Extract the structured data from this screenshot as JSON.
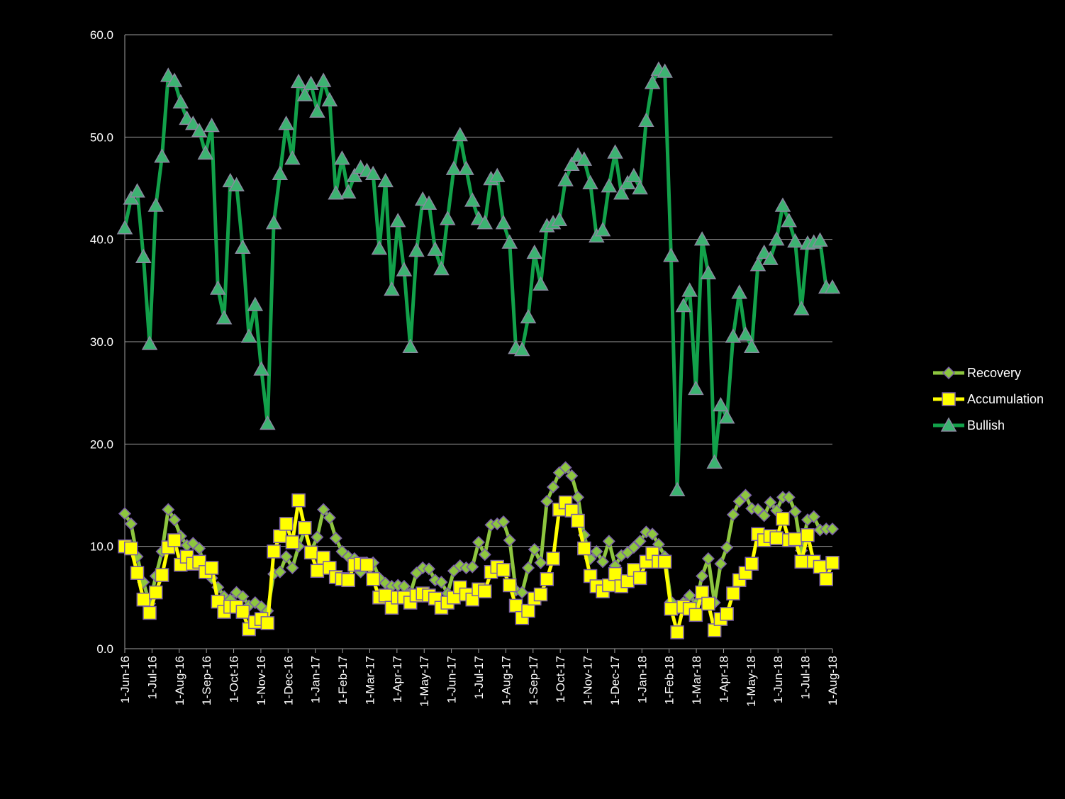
{
  "chart_data": {
    "type": "line",
    "title": "",
    "xlabel": "",
    "ylabel": "",
    "ylim": [
      0,
      60
    ],
    "yticks": [
      "0.0",
      "10.0",
      "20.0",
      "30.0",
      "40.0",
      "50.0",
      "60.0"
    ],
    "xticks": [
      "1-Jun-16",
      "1-Jul-16",
      "1-Aug-16",
      "1-Sep-16",
      "1-Oct-16",
      "1-Nov-16",
      "1-Dec-16",
      "1-Jan-17",
      "1-Feb-17",
      "1-Mar-17",
      "1-Apr-17",
      "1-May-17",
      "1-Jun-17",
      "1-Jul-17",
      "1-Aug-17",
      "1-Sep-17",
      "1-Oct-17",
      "1-Nov-17",
      "1-Dec-17",
      "1-Jan-18",
      "1-Feb-18",
      "1-Mar-18",
      "1-Apr-18",
      "1-May-18",
      "1-Jun-18",
      "1-Jul-18",
      "1-Aug-18"
    ],
    "x_start_month_index": 0,
    "x_end_month_index": 26,
    "grid": true,
    "legend_position": "right",
    "series": [
      {
        "name": "Bullish",
        "color": "#12a14a",
        "marker": "triangle",
        "values": [
          41.1,
          44.0,
          44.7,
          38.3,
          29.8,
          43.3,
          48.1,
          56.0,
          55.5,
          53.4,
          51.8,
          51.3,
          50.6,
          48.4,
          51.1,
          35.2,
          32.3,
          45.7,
          45.3,
          39.2,
          30.5,
          33.6,
          27.3,
          22.0,
          41.6,
          46.4,
          51.3,
          47.9,
          55.4,
          54.1,
          55.2,
          52.5,
          55.5,
          53.6,
          44.5,
          47.9,
          44.6,
          46.2,
          47.0,
          46.7,
          46.4,
          39.1,
          45.7,
          35.1,
          41.8,
          37.0,
          29.5,
          38.9,
          43.9,
          43.5,
          39.0,
          37.1,
          42.0,
          46.9,
          50.2,
          46.9,
          43.8,
          42.0,
          41.6,
          45.9,
          46.2,
          41.6,
          39.7,
          29.4,
          29.2,
          32.4,
          38.7,
          35.6,
          41.3,
          41.6,
          41.9,
          45.8,
          47.3,
          48.2,
          47.8,
          45.5,
          40.3,
          40.9,
          45.2,
          48.5,
          44.5,
          45.5,
          46.2,
          45.0,
          51.6,
          55.3,
          56.6,
          56.4,
          38.4,
          15.5,
          33.5,
          35.0,
          25.4,
          40.0,
          36.7,
          18.2,
          23.8,
          22.6,
          30.5,
          34.8,
          30.7,
          29.5,
          37.5,
          38.7,
          38.1,
          40.0,
          43.3,
          41.8,
          39.8,
          33.2,
          39.6,
          39.7,
          39.9,
          35.3,
          35.3
        ]
      },
      {
        "name": "Recovery",
        "color": "#8dc63f",
        "marker": "diamond",
        "values": [
          13.2,
          12.2,
          9.0,
          6.5,
          4.4,
          7.1,
          9.5,
          13.6,
          12.6,
          11.0,
          10.1,
          10.3,
          9.8,
          7.5,
          6.9,
          6.0,
          5.1,
          4.8,
          5.5,
          5.1,
          4.2,
          4.5,
          4.1,
          3.7,
          7.3,
          7.5,
          9.0,
          7.9,
          10.0,
          11.6,
          9.5,
          10.9,
          13.6,
          12.8,
          10.8,
          9.5,
          9.0,
          8.8,
          7.5,
          8.4,
          8.4,
          6.9,
          6.4,
          6.1,
          6.2,
          6.1,
          5.4,
          7.4,
          7.9,
          7.8,
          6.7,
          6.5,
          5.4,
          7.6,
          8.1,
          7.9,
          8.0,
          10.4,
          9.2,
          12.1,
          12.2,
          12.4,
          10.6,
          5.7,
          5.5,
          7.9,
          9.7,
          8.4,
          14.4,
          15.8,
          17.2,
          17.7,
          16.9,
          14.8,
          11.1,
          8.8,
          9.5,
          8.5,
          10.5,
          8.1,
          9.1,
          9.4,
          9.9,
          10.5,
          11.4,
          11.2,
          10.2,
          9.0,
          4.6,
          3.9,
          4.5,
          5.2,
          4.4,
          7.1,
          8.8,
          4.5,
          8.3,
          9.9,
          13.1,
          14.4,
          15.0,
          13.7,
          13.6,
          13.0,
          14.3,
          13.5,
          14.8,
          14.8,
          13.4,
          9.6,
          12.6,
          12.9,
          11.6,
          11.7,
          11.7
        ]
      },
      {
        "name": "Accumulation",
        "color": "#ffff00",
        "marker": "square",
        "values": [
          10.0,
          9.8,
          7.4,
          4.8,
          3.5,
          5.5,
          7.2,
          9.9,
          10.6,
          8.2,
          9.0,
          8.3,
          8.5,
          7.5,
          7.9,
          4.6,
          3.6,
          4.1,
          4.1,
          3.6,
          1.9,
          2.6,
          2.9,
          2.5,
          9.5,
          11.0,
          12.2,
          10.4,
          14.5,
          11.8,
          9.4,
          7.6,
          8.9,
          7.9,
          7.0,
          6.8,
          6.7,
          8.2,
          8.3,
          8.2,
          6.8,
          5.0,
          5.2,
          4.0,
          5.0,
          5.0,
          4.5,
          5.2,
          5.4,
          5.2,
          4.9,
          4.0,
          4.5,
          5.0,
          6.0,
          5.3,
          4.8,
          5.8,
          5.6,
          7.5,
          8.0,
          7.7,
          6.2,
          4.2,
          3.0,
          3.7,
          4.9,
          5.3,
          6.8,
          8.8,
          13.6,
          14.3,
          13.5,
          12.5,
          9.8,
          7.1,
          6.1,
          5.6,
          6.2,
          7.3,
          6.1,
          6.6,
          7.7,
          6.9,
          8.5,
          9.3,
          8.5,
          8.5,
          3.9,
          1.6,
          4.1,
          3.9,
          3.3,
          5.5,
          4.4,
          1.8,
          2.9,
          3.4,
          5.4,
          6.7,
          7.4,
          8.3,
          11.2,
          10.6,
          11.0,
          10.8,
          12.7,
          10.6,
          10.7,
          8.5,
          11.1,
          8.5,
          8.0,
          6.8,
          8.4
        ]
      }
    ]
  }
}
